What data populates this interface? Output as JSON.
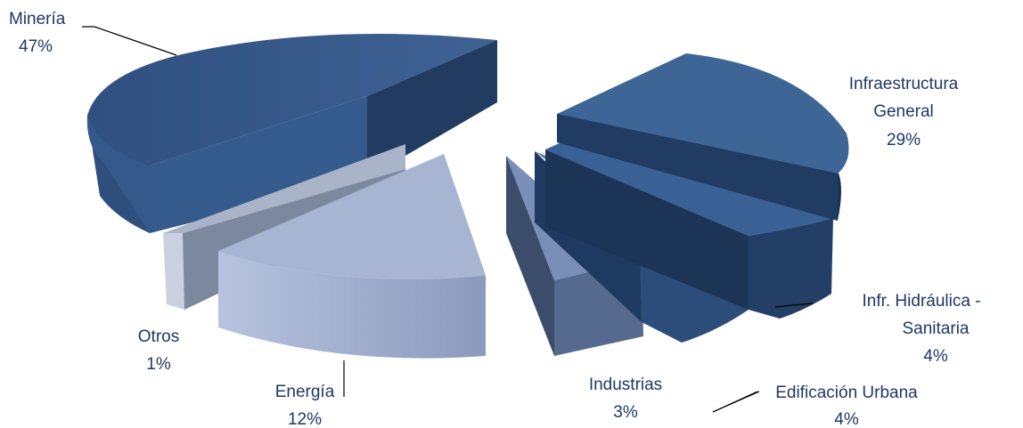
{
  "chart_data": {
    "type": "pie",
    "style": "exploded 3d pie",
    "legend": "none (category labels beside slices)",
    "slices": [
      {
        "label": "Minería",
        "value_label": "47%",
        "value": 47,
        "color": "#3b5c8c"
      },
      {
        "label": "Infraestructura General",
        "label_lines": [
          "Infraestructura",
          "General"
        ],
        "value_label": "29%",
        "value": 29,
        "color": "#3d6596"
      },
      {
        "label": "Infr. Hidráulica - Sanitaria",
        "label_lines": [
          "Infr. Hidráulica -",
          "Sanitaria"
        ],
        "value_label": "4%",
        "value": 4,
        "color": "#34567f"
      },
      {
        "label": "Edificación Urbana",
        "value_label": "4%",
        "value": 4,
        "color": "#4a7ab8"
      },
      {
        "label": "Industrias",
        "value_label": "3%",
        "value": 3,
        "color": "#6f8cb4"
      },
      {
        "label": "Energía",
        "value_label": "12%",
        "value": 12,
        "color": "#a9b7d6"
      },
      {
        "label": "Otros",
        "value_label": "1%",
        "value": 1,
        "color": "#c6cfdf"
      }
    ]
  }
}
